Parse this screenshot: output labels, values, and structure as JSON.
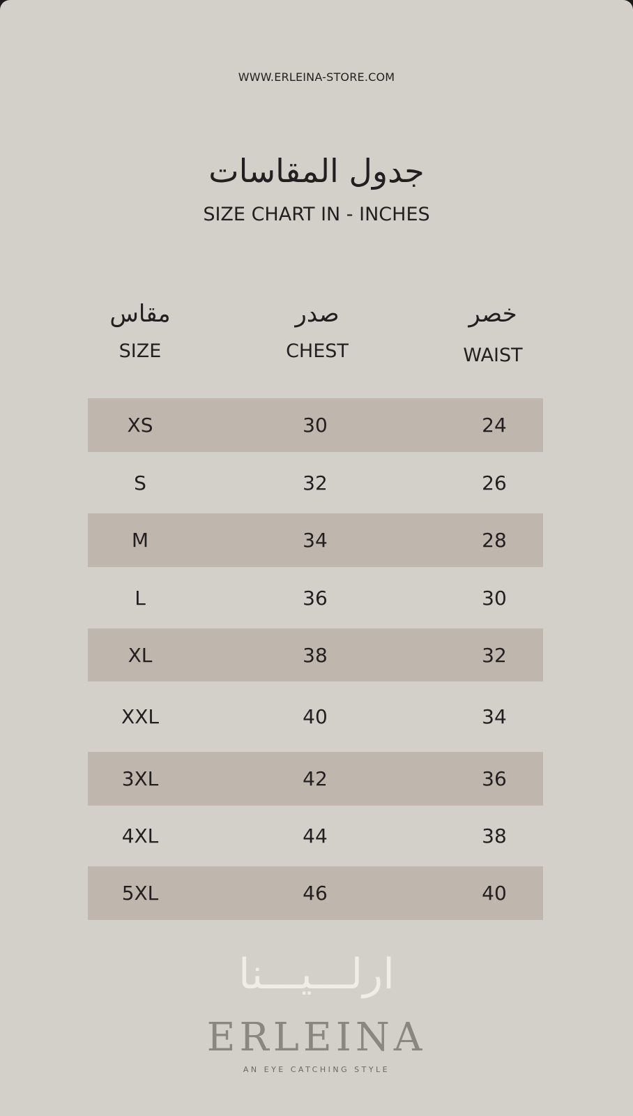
{
  "header": {
    "url": "WWW.ERLEINA-STORE.COM",
    "title_ar": "جدول المقاسات",
    "title_en": "SIZE CHART IN - INCHES"
  },
  "columns": [
    {
      "ar": "مقاس",
      "en": "SIZE"
    },
    {
      "ar": "صدر",
      "en": "CHEST"
    },
    {
      "ar": "خصر",
      "en": "WAIST"
    }
  ],
  "rows": [
    {
      "size": "XS",
      "chest": "30",
      "waist": "24"
    },
    {
      "size": "S",
      "chest": "32",
      "waist": "26"
    },
    {
      "size": "M",
      "chest": "34",
      "waist": "28"
    },
    {
      "size": "L",
      "chest": "36",
      "waist": "30"
    },
    {
      "size": "XL",
      "chest": "38",
      "waist": "32"
    },
    {
      "size": "XXL",
      "chest": "40",
      "waist": "34"
    },
    {
      "size": "3XL",
      "chest": "42",
      "waist": "36"
    },
    {
      "size": "4XL",
      "chest": "44",
      "waist": "38"
    },
    {
      "size": "5XL",
      "chest": "46",
      "waist": "40"
    }
  ],
  "brand": {
    "logo_ar": "ارلـــيـــنا",
    "logo_en": "ERLEINA",
    "tagline": "AN EYE CATCHING STYLE"
  },
  "colors": {
    "background": "#d3d0ca",
    "band": "#bfb7ad",
    "text": "#231f20"
  }
}
